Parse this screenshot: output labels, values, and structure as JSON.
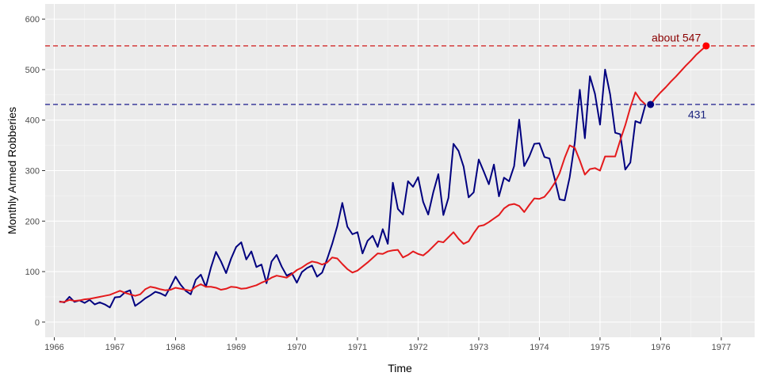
{
  "chart_data": {
    "type": "line",
    "title": "",
    "xlabel": "Time",
    "ylabel": "Monthly Armed Robberies",
    "xlim": [
      1965.85,
      1977.55
    ],
    "ylim": [
      -30,
      630
    ],
    "x_ticks": [
      1966,
      1967,
      1968,
      1969,
      1970,
      1971,
      1972,
      1973,
      1974,
      1975,
      1976,
      1977
    ],
    "y_ticks": [
      0,
      100,
      200,
      300,
      400,
      500,
      600
    ],
    "grid": true,
    "legend": "none",
    "series": [
      {
        "color": "#00007f",
        "x_start": 1966.0833,
        "x_step": 0.083333,
        "values": [
          41,
          39,
          50,
          40,
          43,
          38,
          44,
          35,
          39,
          35,
          29,
          49,
          50,
          59,
          63,
          32,
          39,
          47,
          53,
          60,
          57,
          52,
          70,
          90,
          74,
          62,
          55,
          84,
          94,
          70,
          108,
          139,
          120,
          97,
          126,
          149,
          158,
          124,
          140,
          109,
          114,
          77,
          120,
          133,
          110,
          92,
          97,
          78,
          99,
          107,
          112,
          90,
          98,
          125,
          155,
          190,
          236,
          189,
          174,
          178,
          136,
          161,
          171,
          149,
          184,
          155,
          276,
          224,
          213,
          279,
          268,
          287,
          238,
          213,
          257,
          293,
          212,
          246,
          353,
          339,
          308,
          247,
          257,
          322,
          298,
          273,
          312,
          249,
          286,
          279,
          309,
          401,
          309,
          328,
          353,
          354,
          327,
          324,
          285,
          243,
          241,
          287,
          355,
          460,
          364,
          487,
          452,
          391,
          500,
          451,
          375,
          372,
          302,
          316,
          398,
          394,
          431
        ]
      },
      {
        "color": "#e41a1c",
        "x_start": 1966.0833,
        "x_step": 0.083333,
        "values": [
          40,
          40,
          44,
          42,
          43,
          45,
          46,
          48,
          50,
          52,
          54,
          58,
          62,
          58,
          55,
          52,
          55,
          65,
          70,
          68,
          65,
          63,
          64,
          68,
          66,
          64,
          62,
          70,
          75,
          70,
          70,
          68,
          64,
          66,
          70,
          69,
          66,
          67,
          70,
          73,
          78,
          82,
          88,
          92,
          90,
          88,
          95,
          103,
          108,
          115,
          120,
          118,
          114,
          118,
          128,
          126,
          115,
          105,
          98,
          102,
          110,
          118,
          127,
          136,
          135,
          140,
          142,
          143,
          128,
          133,
          140,
          135,
          132,
          140,
          150,
          160,
          158,
          168,
          178,
          165,
          155,
          160,
          176,
          190,
          192,
          198,
          205,
          212,
          225,
          232,
          234,
          230,
          218,
          232,
          245,
          244,
          248,
          260,
          275,
          295,
          325,
          350,
          345,
          320,
          292,
          303,
          305,
          300,
          328,
          328,
          328,
          360,
          390,
          425,
          455,
          440,
          431
        ]
      },
      {
        "color": "#e41a1c",
        "x_start": 1975.8333,
        "x_step": 0.083333,
        "values": [
          431,
          444,
          455,
          465,
          476,
          486,
          497,
          508,
          518,
          529,
          538,
          547
        ]
      }
    ],
    "reference_lines": [
      {
        "y": 547,
        "color": "#cc0000",
        "style": "dashed"
      },
      {
        "y": 431,
        "color": "#00007f",
        "style": "dashed"
      }
    ],
    "points": [
      {
        "x": 1975.8333,
        "y": 431,
        "color": "#00007f"
      },
      {
        "x": 1976.75,
        "y": 547,
        "color": "#ff0000"
      }
    ],
    "annotations": [
      {
        "text": "about  547",
        "x": 1975.85,
        "y": 563,
        "color": "#8b0000"
      },
      {
        "text": "431",
        "x": 1976.45,
        "y": 411,
        "color": "#1a237e"
      }
    ]
  }
}
